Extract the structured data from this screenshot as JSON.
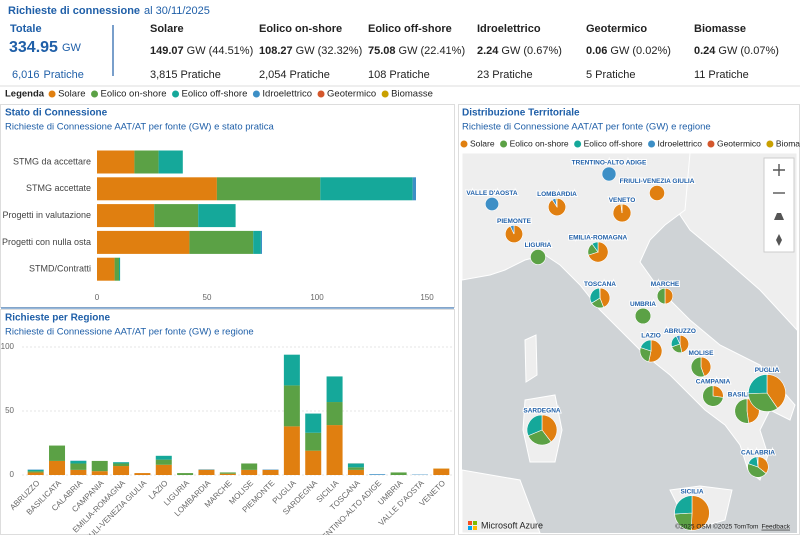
{
  "header": {
    "title": "Richieste di connessione",
    "date": "al 30/11/2025",
    "total": {
      "label": "Totale",
      "value": "334.95",
      "unit": "GW",
      "count": "6,016",
      "count_unit": "Pratiche"
    },
    "sources": [
      {
        "name": "Solare",
        "value": "149.07",
        "unit": "GW",
        "share": "(44.51%)",
        "count": "3,815",
        "count_unit": "Pratiche"
      },
      {
        "name": "Eolico on-shore",
        "value": "108.27",
        "unit": "GW",
        "share": "(32.32%)",
        "count": "2,054",
        "count_unit": "Pratiche"
      },
      {
        "name": "Eolico off-shore",
        "value": "75.08",
        "unit": "GW",
        "share": "(22.41%)",
        "count": "108",
        "count_unit": "Pratiche"
      },
      {
        "name": "Idroelettrico",
        "value": "2.24",
        "unit": "GW",
        "share": "(0.67%)",
        "count": "23",
        "count_unit": "Pratiche"
      },
      {
        "name": "Geotermico",
        "value": "0.06",
        "unit": "GW",
        "share": "(0.02%)",
        "count": "5",
        "count_unit": "Pratiche"
      },
      {
        "name": "Biomasse",
        "value": "0.24",
        "unit": "GW",
        "share": "(0.07%)",
        "count": "11",
        "count_unit": "Pratiche"
      }
    ]
  },
  "legend": {
    "label": "Legenda"
  },
  "chart_data": [
    {
      "type": "hbar_stacked",
      "title": "Stato di Connessione",
      "subtitle": "Richieste di Connessione AAT/AT per fonte (GW) e stato pratica",
      "categories": [
        "STMG da accettare",
        "STMG accettate",
        "Progetti in valutazione",
        "Progetti con nulla osta",
        "STMD/Contratti"
      ],
      "series": [
        {
          "name": "Solare",
          "color": "#e07f10",
          "values": [
            17,
            54.5,
            26,
            42,
            8
          ]
        },
        {
          "name": "Eolico on-shore",
          "color": "#5ba145",
          "values": [
            11,
            47,
            20,
            29,
            2
          ]
        },
        {
          "name": "Eolico off-shore",
          "color": "#15a89a",
          "values": [
            11,
            42,
            17,
            3.5,
            0.5
          ]
        },
        {
          "name": "Idroelettrico",
          "color": "#3d8fc6",
          "values": [
            0,
            1.5,
            0,
            0.5,
            0
          ]
        }
      ],
      "xlim": [
        0,
        150
      ],
      "xticks": [
        0,
        50,
        100,
        150
      ]
    },
    {
      "type": "bar_stacked",
      "title": "Richieste per Regione",
      "subtitle": "Richieste di Connessione AAT/AT per fonte (GW) e regione",
      "categories": [
        "ABRUZZO",
        "BASILICATA",
        "CALABRIA",
        "CAMPANIA",
        "EMILIA-ROMAGNA",
        "FRIULI-VENEZIA GIULIA",
        "LAZIO",
        "LIGURIA",
        "LOMBARDIA",
        "MARCHE",
        "MOLISE",
        "PIEMONTE",
        "PUGLIA",
        "SARDEGNA",
        "SICILIA",
        "TOSCANA",
        "TRENTINO-ALTO ADIGE",
        "UMBRIA",
        "VALLE D'AOSTA",
        "VENETO"
      ],
      "series": [
        {
          "name": "Solare",
          "color": "#e07f10",
          "values": [
            2,
            11,
            4,
            3,
            7,
            1.5,
            8,
            0,
            4,
            1,
            4,
            4,
            38,
            19,
            39,
            4,
            0,
            0,
            0,
            5
          ]
        },
        {
          "name": "Eolico on-shore",
          "color": "#5ba145",
          "values": [
            1,
            12,
            5,
            8,
            2,
            0,
            4,
            1.5,
            0,
            1,
            5,
            0,
            32,
            14,
            18,
            2,
            0,
            2,
            0,
            0
          ]
        },
        {
          "name": "Eolico off-shore",
          "color": "#15a89a",
          "values": [
            1,
            0,
            2,
            0,
            1,
            0,
            3,
            0,
            0,
            0,
            0,
            0,
            24,
            15,
            20,
            3,
            0,
            0,
            0,
            0
          ]
        },
        {
          "name": "Idroelettrico",
          "color": "#3d8fc6",
          "values": [
            0.3,
            0,
            0.2,
            0,
            0,
            0,
            0,
            0,
            0.3,
            0,
            0,
            0.3,
            0,
            0,
            0,
            0,
            0.6,
            0,
            0.3,
            0
          ]
        },
        {
          "name": "Geotermico",
          "color": "#d4572c",
          "values": [
            0,
            0,
            0,
            0,
            0,
            0,
            0,
            0,
            0,
            0,
            0,
            0,
            0,
            0,
            0,
            0.06,
            0,
            0,
            0,
            0
          ]
        },
        {
          "name": "Biomasse",
          "color": "#c9a000",
          "values": [
            0,
            0,
            0,
            0,
            0,
            0,
            0,
            0,
            0.1,
            0,
            0,
            0,
            0,
            0,
            0,
            0,
            0,
            0,
            0,
            0.1
          ]
        }
      ],
      "ylim": [
        0,
        100
      ],
      "yticks": [
        0,
        50,
        100
      ],
      "grid": true
    },
    {
      "type": "map",
      "title": "Distribuzione Territoriale",
      "subtitle": "Richieste di Connessione AAT/AT per fonte (GW) e regione",
      "brand": "Microsoft Azure",
      "attribution": "©2025 OSM ©2025 TomTom",
      "feedback": "Feedback"
    }
  ]
}
